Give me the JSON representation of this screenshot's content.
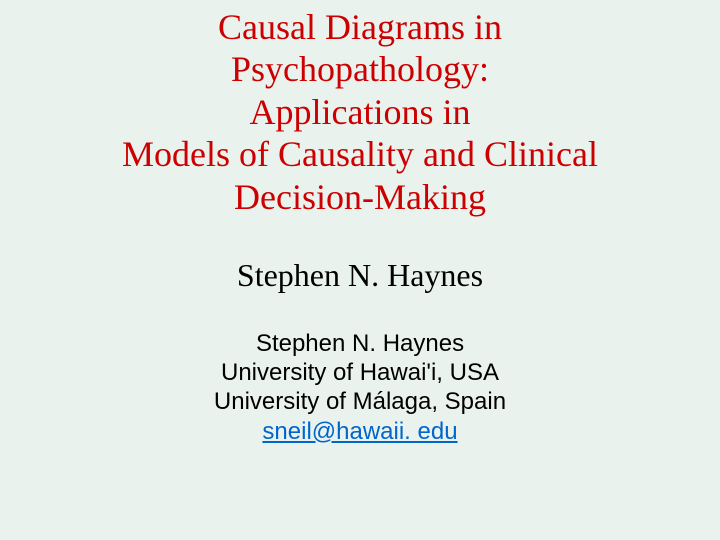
{
  "slide": {
    "background_color": "#eaf2ee",
    "title": {
      "lines": [
        "Causal Diagrams in",
        "Psychopathology:",
        "Applications in",
        "Models of Causality and Clinical",
        "Decision-Making"
      ],
      "color": "#cc0000",
      "font_family": "Times New Roman",
      "font_size_pt": 36,
      "font_weight": 400
    },
    "author_large": {
      "text": "Stephen N. Haynes",
      "color": "#000000",
      "font_family": "Times New Roman",
      "font_size_pt": 32,
      "font_weight": 400
    },
    "affiliation": {
      "name": "Stephen N. Haynes",
      "line1": "University of Hawai'i, USA",
      "line2": "University of Málaga, Spain",
      "email": "sneil@hawaii. edu",
      "color": "#000000",
      "email_color": "#0066cc",
      "font_family": "Arial",
      "font_size_pt": 24,
      "font_weight": 400
    }
  }
}
